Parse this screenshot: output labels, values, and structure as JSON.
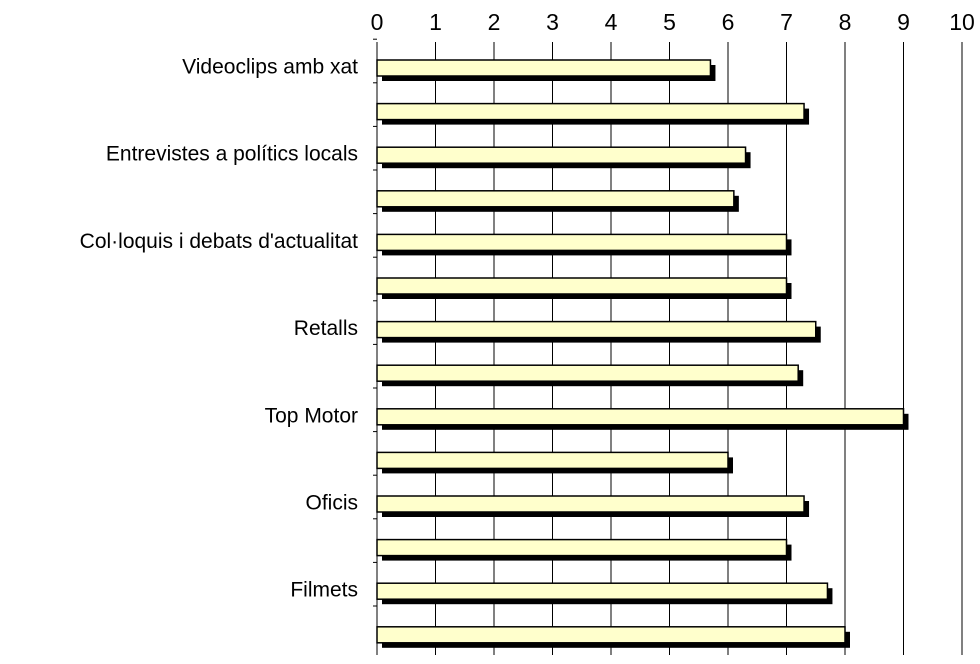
{
  "chart_data": {
    "type": "bar",
    "orientation": "horizontal",
    "categories": [
      "Videoclips amb xat",
      "",
      "Entrevistes a polítics locals",
      "",
      "Col·loquis i debats d'actualitat",
      "",
      "Retalls",
      "",
      "Top Motor",
      "",
      "Oficis",
      "",
      "Filmets",
      ""
    ],
    "values": [
      5.7,
      7.3,
      6.3,
      6.1,
      7.0,
      7.0,
      7.5,
      7.2,
      9.0,
      6.0,
      7.3,
      7.0,
      7.7,
      8.0
    ],
    "title": "",
    "xlabel": "",
    "ylabel": "",
    "xlim": [
      0,
      10
    ],
    "x_ticks": [
      "0",
      "1",
      "2",
      "3",
      "4",
      "5",
      "6",
      "7",
      "8",
      "9",
      "10"
    ],
    "x_axis_position": "top",
    "grid": true,
    "legend": "none",
    "colors": {
      "bar_fill": "#ffffcc",
      "bar_shadow": "#000000",
      "gridline": "#000000",
      "text": "#000000",
      "background": "#ffffff"
    }
  }
}
